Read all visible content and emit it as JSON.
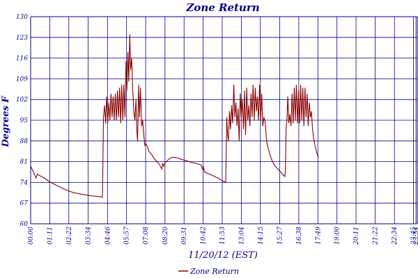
{
  "chart_data": {
    "type": "line",
    "title": "Zone Return",
    "xlabel": "11/20/12 (EST)",
    "ylabel": "Degrees F",
    "ylim": [
      60,
      130
    ],
    "yticks": [
      60,
      67,
      74,
      81,
      88,
      95,
      102,
      109,
      116,
      123,
      130
    ],
    "xlim": [
      0,
      1439
    ],
    "xtick_minutes": [
      0,
      71,
      142,
      214,
      286,
      357,
      428,
      500,
      571,
      642,
      713,
      784,
      855,
      927,
      998,
      1069,
      1140,
      1211,
      1282,
      1354,
      1425,
      1434
    ],
    "xtick_labels": [
      "00:00",
      "01:11",
      "02:22",
      "03:34",
      "04:46",
      "05:57",
      "07:08",
      "08:20",
      "09:31",
      "10:42",
      "11:53",
      "13:04",
      "14:15",
      "15:27",
      "16:38",
      "17:49",
      "19:00",
      "20:11",
      "21:22",
      "22:34",
      "23:45",
      "23:54"
    ],
    "grid": true,
    "legend_position": "bottom-center",
    "colors": {
      "series": "#8b0000",
      "grid": "#00008b",
      "text": "#00008b"
    },
    "series": [
      {
        "name": "Zone Return",
        "points": [
          [
            0,
            79.5
          ],
          [
            10,
            77.5
          ],
          [
            20,
            75.5
          ],
          [
            25,
            76.8
          ],
          [
            35,
            76.2
          ],
          [
            50,
            75.5
          ],
          [
            70,
            74.2
          ],
          [
            100,
            72.8
          ],
          [
            130,
            71.5
          ],
          [
            160,
            70.5
          ],
          [
            190,
            70
          ],
          [
            220,
            69.5
          ],
          [
            255,
            69.2
          ],
          [
            267,
            69
          ],
          [
            269,
            80
          ],
          [
            271,
            96
          ],
          [
            275,
            100
          ],
          [
            279,
            94
          ],
          [
            283,
            103
          ],
          [
            287,
            94
          ],
          [
            291,
            101
          ],
          [
            295,
            95
          ],
          [
            299,
            104
          ],
          [
            303,
            96
          ],
          [
            307,
            103
          ],
          [
            311,
            95
          ],
          [
            315,
            104
          ],
          [
            319,
            95
          ],
          [
            323,
            105
          ],
          [
            327,
            96
          ],
          [
            331,
            106
          ],
          [
            335,
            94
          ],
          [
            339,
            107
          ],
          [
            343,
            95
          ],
          [
            347,
            107
          ],
          [
            351,
            96
          ],
          [
            355,
            115
          ],
          [
            358,
            105
          ],
          [
            362,
            118
          ],
          [
            365,
            108
          ],
          [
            369,
            124
          ],
          [
            372,
            112
          ],
          [
            376,
            116
          ],
          [
            380,
            105
          ],
          [
            384,
            98
          ],
          [
            388,
            95
          ],
          [
            392,
            102
          ],
          [
            395,
            92
          ],
          [
            398,
            88
          ],
          [
            402,
            107
          ],
          [
            405,
            96
          ],
          [
            409,
            106
          ],
          [
            413,
            93
          ],
          [
            417,
            95
          ],
          [
            421,
            90
          ],
          [
            425,
            86.5
          ],
          [
            430,
            87
          ],
          [
            435,
            86
          ],
          [
            440,
            84.5
          ],
          [
            450,
            83.5
          ],
          [
            460,
            82
          ],
          [
            470,
            81
          ],
          [
            480,
            80
          ],
          [
            488,
            78.5
          ],
          [
            491,
            80.5
          ],
          [
            495,
            79.5
          ],
          [
            500,
            80.5
          ],
          [
            510,
            81.5
          ],
          [
            520,
            82.2
          ],
          [
            530,
            82.5
          ],
          [
            545,
            82.3
          ],
          [
            560,
            81.8
          ],
          [
            580,
            81.3
          ],
          [
            600,
            80.7
          ],
          [
            620,
            80.3
          ],
          [
            635,
            79.8
          ],
          [
            640,
            78.5
          ],
          [
            643,
            79.2
          ],
          [
            647,
            77.5
          ],
          [
            660,
            77
          ],
          [
            680,
            76.2
          ],
          [
            700,
            75.3
          ],
          [
            715,
            74.5
          ],
          [
            726,
            74
          ],
          [
            728,
            85
          ],
          [
            730,
            96
          ],
          [
            733,
            90
          ],
          [
            736,
            88
          ],
          [
            740,
            98
          ],
          [
            744,
            92
          ],
          [
            748,
            100
          ],
          [
            752,
            94
          ],
          [
            756,
            107
          ],
          [
            760,
            96
          ],
          [
            764,
            101
          ],
          [
            768,
            93
          ],
          [
            772,
            99
          ],
          [
            776,
            88
          ],
          [
            780,
            104
          ],
          [
            784,
            96
          ],
          [
            788,
            102
          ],
          [
            792,
            92
          ],
          [
            796,
            105
          ],
          [
            800,
            90
          ],
          [
            804,
            106
          ],
          [
            808,
            95
          ],
          [
            812,
            100
          ],
          [
            816,
            93
          ],
          [
            820,
            104
          ],
          [
            824,
            96
          ],
          [
            828,
            107
          ],
          [
            832,
            95
          ],
          [
            836,
            106
          ],
          [
            840,
            98
          ],
          [
            844,
            103
          ],
          [
            848,
            95
          ],
          [
            852,
            107
          ],
          [
            856,
            95
          ],
          [
            860,
            104
          ],
          [
            864,
            93
          ],
          [
            868,
            96
          ],
          [
            872,
            95
          ],
          [
            876,
            90
          ],
          [
            880,
            87
          ],
          [
            890,
            83.5
          ],
          [
            900,
            81
          ],
          [
            910,
            79.5
          ],
          [
            920,
            78.5
          ],
          [
            930,
            77.5
          ],
          [
            940,
            76.5
          ],
          [
            946,
            76
          ],
          [
            948,
            78
          ],
          [
            951,
            93
          ],
          [
            954,
            95
          ],
          [
            957,
            103
          ],
          [
            961,
            94
          ],
          [
            965,
            97
          ],
          [
            969,
            93
          ],
          [
            973,
            104
          ],
          [
            977,
            94
          ],
          [
            981,
            106
          ],
          [
            985,
            95
          ],
          [
            989,
            107
          ],
          [
            993,
            94
          ],
          [
            997,
            105
          ],
          [
            1001,
            94
          ],
          [
            1005,
            107
          ],
          [
            1009,
            95
          ],
          [
            1013,
            106
          ],
          [
            1017,
            93
          ],
          [
            1021,
            106
          ],
          [
            1025,
            96
          ],
          [
            1029,
            104
          ],
          [
            1033,
            93
          ],
          [
            1037,
            101
          ],
          [
            1041,
            96
          ],
          [
            1045,
            98
          ],
          [
            1049,
            92
          ],
          [
            1053,
            89
          ],
          [
            1057,
            87
          ],
          [
            1062,
            85
          ],
          [
            1068,
            83
          ],
          [
            1072,
            82.5
          ]
        ]
      }
    ]
  }
}
